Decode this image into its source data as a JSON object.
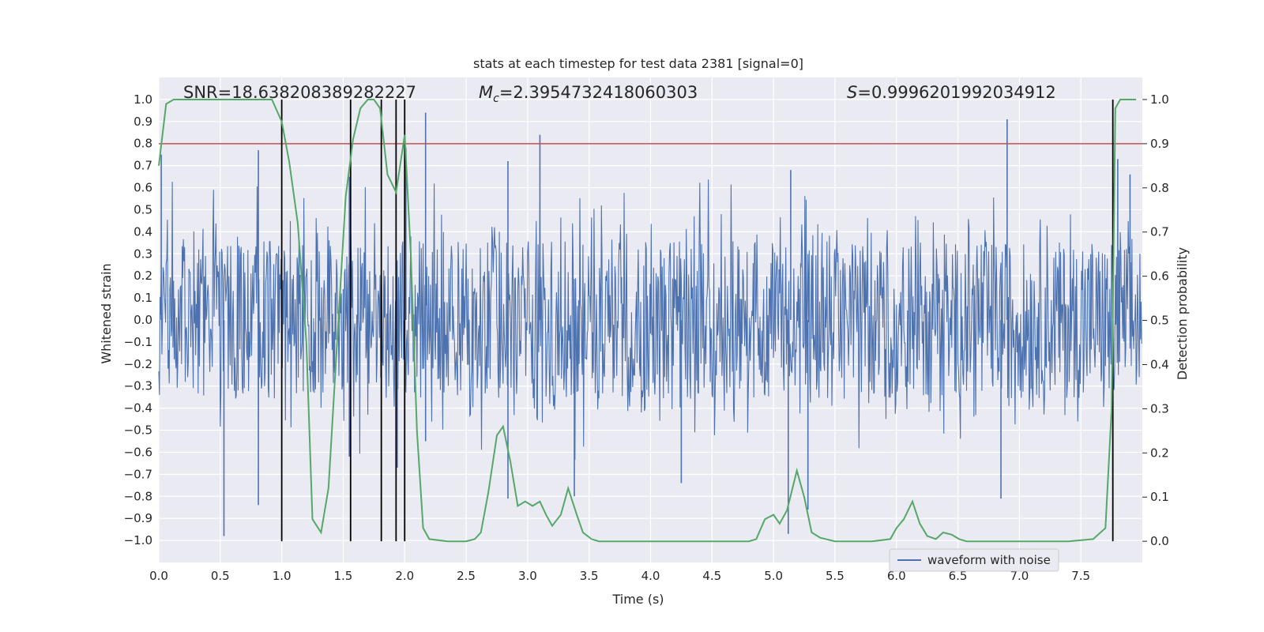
{
  "chart_data": {
    "type": "line",
    "title": "stats at each timestep for test data 2381 [signal=0]",
    "xlabel": "Time (s)",
    "ylabel": "Whitened strain",
    "y2label": "Detection probability",
    "xlim": [
      0,
      8.0
    ],
    "ylim": [
      -1.1,
      1.1
    ],
    "y2lim": [
      -0.048,
      1.05
    ],
    "x_ticks": [
      "0.0",
      "0.5",
      "1.0",
      "1.5",
      "2.0",
      "2.5",
      "3.0",
      "3.5",
      "4.0",
      "4.5",
      "5.0",
      "5.5",
      "6.0",
      "6.5",
      "7.0",
      "7.5"
    ],
    "y_ticks": [
      "1.0",
      "0.9",
      "0.8",
      "0.7",
      "0.6",
      "0.5",
      "0.4",
      "0.3",
      "0.2",
      "0.1",
      "0.0",
      "-0.1",
      "-0.2",
      "-0.3",
      "-0.4",
      "-0.5",
      "-0.6",
      "-0.7",
      "-0.8",
      "-0.9",
      "-1.0"
    ],
    "y2_ticks": [
      "1.0",
      "0.9",
      "0.8",
      "0.7",
      "0.6",
      "0.5",
      "0.4",
      "0.3",
      "0.2",
      "0.1",
      "0.0"
    ],
    "annotations": {
      "snr": "SNR=18.638208389282227",
      "mc_symbol": "M",
      "mc_sub": "c",
      "mc_value": "=2.3954732418060303",
      "s_symbol": "S",
      "s_value": "=0.9996201992034912"
    },
    "threshold": 0.9,
    "vlines_x": [
      1.0,
      1.56,
      1.81,
      1.93,
      2.0,
      7.76
    ],
    "waveform": {
      "name": "waveform with noise",
      "typical_envelope": 0.35,
      "peaks": [
        {
          "x": 0.02,
          "v": 0.75
        },
        {
          "x": 0.53,
          "v": -0.98
        },
        {
          "x": 0.81,
          "v": 0.77
        },
        {
          "x": 0.81,
          "v": -0.84
        },
        {
          "x": 1.55,
          "v": 0.65
        },
        {
          "x": 1.55,
          "v": -0.62
        },
        {
          "x": 1.94,
          "v": -0.67
        },
        {
          "x": 2.01,
          "v": 0.78
        },
        {
          "x": 2.17,
          "v": 0.94
        },
        {
          "x": 2.17,
          "v": -0.55
        },
        {
          "x": 2.84,
          "v": 0.72
        },
        {
          "x": 2.84,
          "v": -0.81
        },
        {
          "x": 3.1,
          "v": 0.84
        },
        {
          "x": 3.38,
          "v": -0.8
        },
        {
          "x": 4.25,
          "v": -0.74
        },
        {
          "x": 5.12,
          "v": -0.97
        },
        {
          "x": 5.14,
          "v": 0.68
        },
        {
          "x": 5.28,
          "v": -0.86
        },
        {
          "x": 6.9,
          "v": 0.91
        },
        {
          "x": 6.85,
          "v": -0.81
        },
        {
          "x": 7.76,
          "v": -0.73
        },
        {
          "x": 7.8,
          "v": 0.73
        },
        {
          "x": 7.9,
          "v": 0.66
        }
      ]
    },
    "detection_probability": {
      "name": "detection probability",
      "x": [
        0.0,
        0.06,
        0.12,
        0.2,
        0.4,
        0.6,
        0.8,
        0.92,
        1.0,
        1.06,
        1.13,
        1.2,
        1.25,
        1.32,
        1.38,
        1.45,
        1.52,
        1.58,
        1.64,
        1.7,
        1.75,
        1.8,
        1.86,
        1.93,
        2.0,
        2.05,
        2.1,
        2.15,
        2.2,
        2.35,
        2.5,
        2.57,
        2.62,
        2.68,
        2.75,
        2.8,
        2.86,
        2.92,
        2.98,
        3.04,
        3.1,
        3.15,
        3.2,
        3.27,
        3.33,
        3.4,
        3.45,
        3.52,
        3.58,
        3.7,
        3.85,
        4.0,
        4.2,
        4.4,
        4.6,
        4.8,
        4.86,
        4.93,
        5.0,
        5.05,
        5.11,
        5.19,
        5.25,
        5.31,
        5.38,
        5.5,
        5.65,
        5.8,
        5.95,
        6.0,
        6.06,
        6.13,
        6.19,
        6.25,
        6.32,
        6.38,
        6.45,
        6.51,
        6.57,
        6.7,
        6.85,
        7.0,
        7.2,
        7.4,
        7.6,
        7.7,
        7.75,
        7.78,
        7.82,
        7.88,
        7.95
      ],
      "y": [
        0.85,
        0.99,
        1.0,
        1.0,
        1.0,
        1.0,
        1.0,
        1.0,
        0.95,
        0.86,
        0.72,
        0.45,
        0.05,
        0.02,
        0.12,
        0.45,
        0.78,
        0.91,
        0.98,
        1.0,
        1.0,
        0.98,
        0.83,
        0.79,
        0.92,
        0.65,
        0.25,
        0.03,
        0.005,
        0.0,
        0.0,
        0.005,
        0.02,
        0.11,
        0.24,
        0.26,
        0.18,
        0.08,
        0.09,
        0.08,
        0.09,
        0.06,
        0.035,
        0.06,
        0.12,
        0.06,
        0.02,
        0.005,
        0.0,
        0.0,
        0.0,
        0.0,
        0.0,
        0.0,
        0.0,
        0.0,
        0.005,
        0.05,
        0.06,
        0.04,
        0.07,
        0.16,
        0.1,
        0.02,
        0.008,
        0.0,
        0.0,
        0.0,
        0.005,
        0.03,
        0.05,
        0.09,
        0.04,
        0.012,
        0.005,
        0.02,
        0.015,
        0.005,
        0.0,
        0.0,
        0.0,
        0.0,
        0.0,
        0.0,
        0.005,
        0.03,
        0.3,
        0.98,
        1.0,
        1.0,
        1.0
      ]
    }
  },
  "colors": {
    "background": "#eaeaf2",
    "grid": "#ffffff",
    "waveform": "#4c72b0",
    "probability": "#55a868",
    "threshold": "#c44e52",
    "vline": "#000000"
  },
  "legend": {
    "label": "waveform with noise",
    "location": "lower-right"
  }
}
